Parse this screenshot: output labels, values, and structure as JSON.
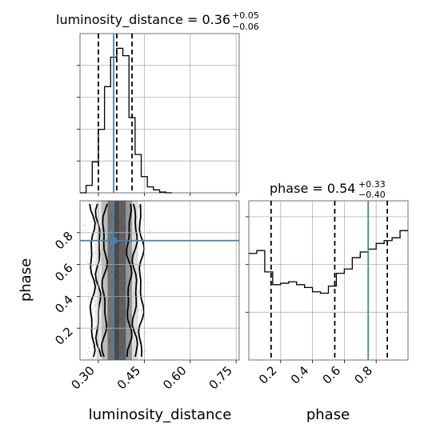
{
  "chart_data": [
    {
      "type": "line",
      "panel": "histogram",
      "title_param": "luminosity_distance",
      "title_value": "0.36",
      "title_plus": "+0.05",
      "title_minus": "−0.06",
      "xlim": [
        0.24,
        0.76
      ],
      "bin_edges": [
        0.24,
        0.26,
        0.28,
        0.3,
        0.32,
        0.34,
        0.36,
        0.38,
        0.4,
        0.42,
        0.44,
        0.46,
        0.48,
        0.5,
        0.52,
        0.54
      ],
      "counts": [
        0,
        0.05,
        0.21,
        0.43,
        0.72,
        0.92,
        0.98,
        0.93,
        0.51,
        0.26,
        0.11,
        0.04,
        0.02,
        0.005,
        0
      ],
      "quantiles": [
        0.3,
        0.36,
        0.41
      ],
      "truth": 0.35
    },
    {
      "type": "line",
      "panel": "histogram",
      "title_param": "phase",
      "title_value": "0.54",
      "title_plus": "+0.33",
      "title_minus": "−0.40",
      "xlim": [
        0.0,
        1.0
      ],
      "bin_edges": [
        0.0,
        0.05,
        0.1,
        0.15,
        0.2,
        0.25,
        0.3,
        0.35,
        0.4,
        0.45,
        0.5,
        0.55,
        0.6,
        0.65,
        0.7,
        0.75,
        0.8,
        0.85,
        0.9,
        0.95,
        1.0
      ],
      "counts": [
        0.75,
        0.77,
        0.62,
        0.53,
        0.54,
        0.55,
        0.53,
        0.51,
        0.48,
        0.47,
        0.52,
        0.61,
        0.64,
        0.72,
        0.76,
        0.78,
        0.82,
        0.84,
        0.86,
        0.91
      ],
      "quantiles": [
        0.14,
        0.54,
        0.87
      ],
      "truth": 0.75
    },
    {
      "type": "heatmap",
      "panel": "2d",
      "xlabel": "luminosity_distance",
      "ylabel": "phase",
      "xlim": [
        0.24,
        0.76
      ],
      "ylim": [
        0.0,
        1.0
      ],
      "xticks": [
        "0.30",
        "0.45",
        "0.60",
        "0.75"
      ],
      "xtick_values": [
        0.3,
        0.45,
        0.6,
        0.75
      ],
      "yticks": [
        "0.2",
        "0.4",
        "0.6",
        "0.8"
      ],
      "ytick_values": [
        0.2,
        0.4,
        0.6,
        0.8
      ],
      "truth": [
        0.35,
        0.75
      ],
      "density_x_centers": [
        0.3,
        0.32,
        0.34,
        0.36,
        0.38,
        0.4,
        0.42
      ],
      "density_levels": [
        0.12,
        0.35,
        0.75,
        0.95,
        0.85,
        0.55,
        0.18
      ]
    }
  ],
  "phase_axis": {
    "xlabel": "phase",
    "xticks": [
      "0.2",
      "0.4",
      "0.6",
      "0.8"
    ],
    "xtick_values": [
      0.2,
      0.4,
      0.6,
      0.8
    ]
  },
  "colors": {
    "truth": "#4682b4",
    "hist": "#000000",
    "scatter": "#9e9e9e"
  }
}
